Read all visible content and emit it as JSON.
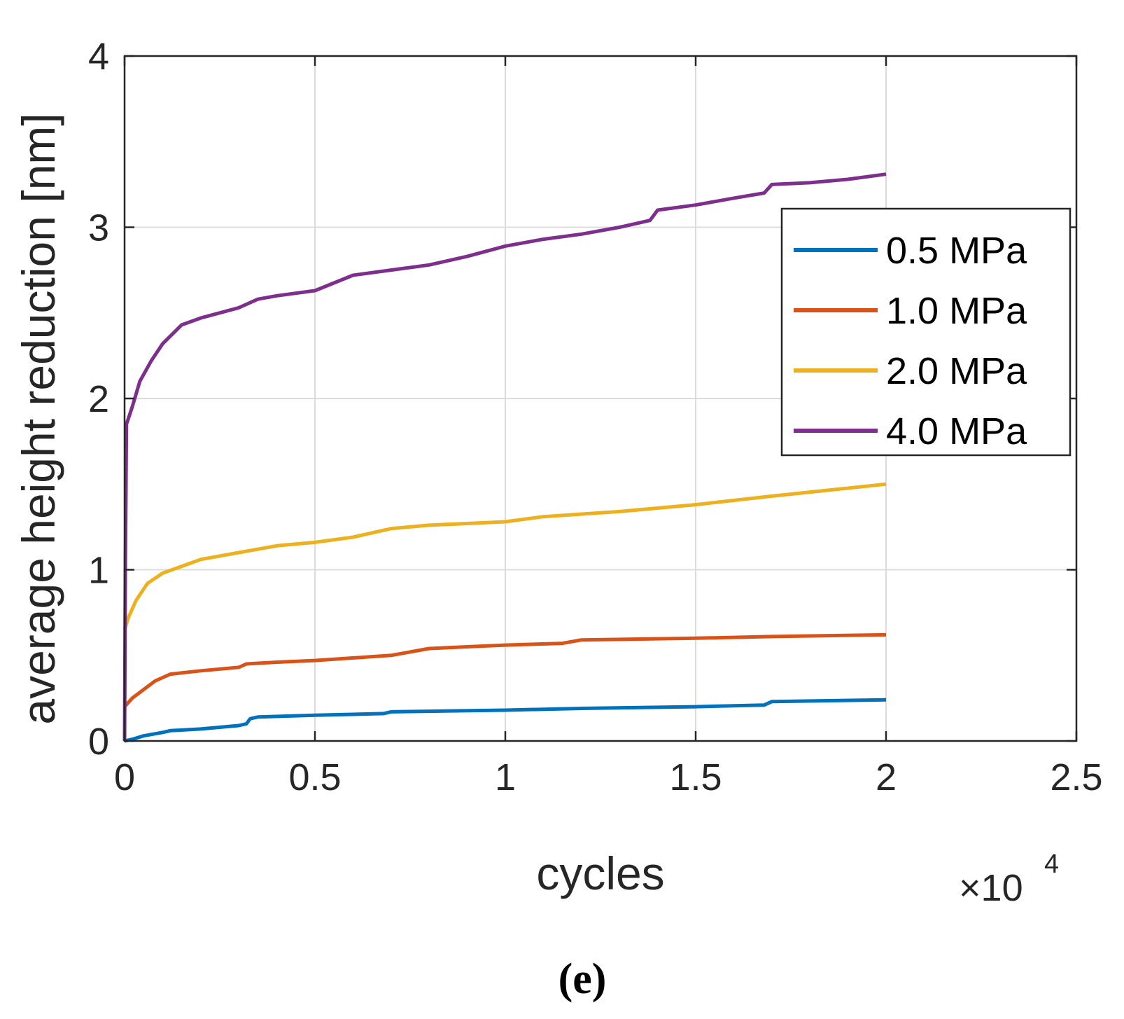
{
  "chart_data": {
    "type": "line",
    "xlabel": "cycles",
    "ylabel": "average height reduction [nm]",
    "xlim": [
      0,
      25000
    ],
    "ylim": [
      0,
      4
    ],
    "x_ticks": [
      0,
      5000,
      10000,
      15000,
      20000,
      25000
    ],
    "x_tick_labels": [
      "0",
      "0.5",
      "1",
      "1.5",
      "2",
      "2.5"
    ],
    "y_ticks": [
      0,
      1,
      2,
      3,
      4
    ],
    "y_tick_labels": [
      "0",
      "1",
      "2",
      "3",
      "4"
    ],
    "x_exponent": {
      "prefix": "×10",
      "power": "4"
    },
    "grid": true,
    "legend_position": "top-right",
    "caption": "(e)",
    "series": [
      {
        "name": "0.5 MPa",
        "color": "#0072BD",
        "points": [
          [
            0,
            0
          ],
          [
            200,
            0.01
          ],
          [
            500,
            0.03
          ],
          [
            1000,
            0.05
          ],
          [
            1200,
            0.06
          ],
          [
            2000,
            0.07
          ],
          [
            3000,
            0.09
          ],
          [
            3200,
            0.1
          ],
          [
            3300,
            0.13
          ],
          [
            3500,
            0.14
          ],
          [
            5000,
            0.15
          ],
          [
            6800,
            0.16
          ],
          [
            7000,
            0.17
          ],
          [
            10000,
            0.18
          ],
          [
            12000,
            0.19
          ],
          [
            15000,
            0.2
          ],
          [
            16800,
            0.21
          ],
          [
            17000,
            0.23
          ],
          [
            20000,
            0.24
          ]
        ]
      },
      {
        "name": "1.0 MPa",
        "color": "#D95319",
        "points": [
          [
            0,
            0.2
          ],
          [
            200,
            0.25
          ],
          [
            500,
            0.3
          ],
          [
            800,
            0.35
          ],
          [
            1200,
            0.39
          ],
          [
            2000,
            0.41
          ],
          [
            3000,
            0.43
          ],
          [
            3200,
            0.45
          ],
          [
            4000,
            0.46
          ],
          [
            5000,
            0.47
          ],
          [
            7000,
            0.5
          ],
          [
            8000,
            0.54
          ],
          [
            9000,
            0.55
          ],
          [
            10000,
            0.56
          ],
          [
            11500,
            0.57
          ],
          [
            12000,
            0.59
          ],
          [
            15000,
            0.6
          ],
          [
            17000,
            0.61
          ],
          [
            20000,
            0.62
          ]
        ]
      },
      {
        "name": "2.0 MPa",
        "color": "#EDB120",
        "points": [
          [
            0,
            0.65
          ],
          [
            100,
            0.72
          ],
          [
            300,
            0.82
          ],
          [
            600,
            0.92
          ],
          [
            1000,
            0.98
          ],
          [
            1500,
            1.02
          ],
          [
            2000,
            1.06
          ],
          [
            3000,
            1.1
          ],
          [
            3500,
            1.12
          ],
          [
            4000,
            1.14
          ],
          [
            5000,
            1.16
          ],
          [
            6000,
            1.19
          ],
          [
            7000,
            1.24
          ],
          [
            8000,
            1.26
          ],
          [
            9000,
            1.27
          ],
          [
            10000,
            1.28
          ],
          [
            11000,
            1.31
          ],
          [
            13000,
            1.34
          ],
          [
            15000,
            1.38
          ],
          [
            17000,
            1.43
          ],
          [
            20000,
            1.5
          ]
        ]
      },
      {
        "name": "4.0 MPa",
        "color": "#7E2F8E",
        "points": [
          [
            0,
            0
          ],
          [
            20,
            1.0
          ],
          [
            50,
            1.85
          ],
          [
            200,
            1.95
          ],
          [
            400,
            2.1
          ],
          [
            700,
            2.22
          ],
          [
            1000,
            2.32
          ],
          [
            1500,
            2.43
          ],
          [
            2000,
            2.47
          ],
          [
            3000,
            2.53
          ],
          [
            3500,
            2.58
          ],
          [
            4000,
            2.6
          ],
          [
            5000,
            2.63
          ],
          [
            6000,
            2.72
          ],
          [
            7000,
            2.75
          ],
          [
            8000,
            2.78
          ],
          [
            9000,
            2.83
          ],
          [
            10000,
            2.89
          ],
          [
            11000,
            2.93
          ],
          [
            12000,
            2.96
          ],
          [
            13000,
            3.0
          ],
          [
            13800,
            3.04
          ],
          [
            14000,
            3.1
          ],
          [
            15000,
            3.13
          ],
          [
            16000,
            3.17
          ],
          [
            16800,
            3.2
          ],
          [
            17000,
            3.25
          ],
          [
            18000,
            3.26
          ],
          [
            19000,
            3.28
          ],
          [
            20000,
            3.31
          ]
        ]
      }
    ]
  }
}
